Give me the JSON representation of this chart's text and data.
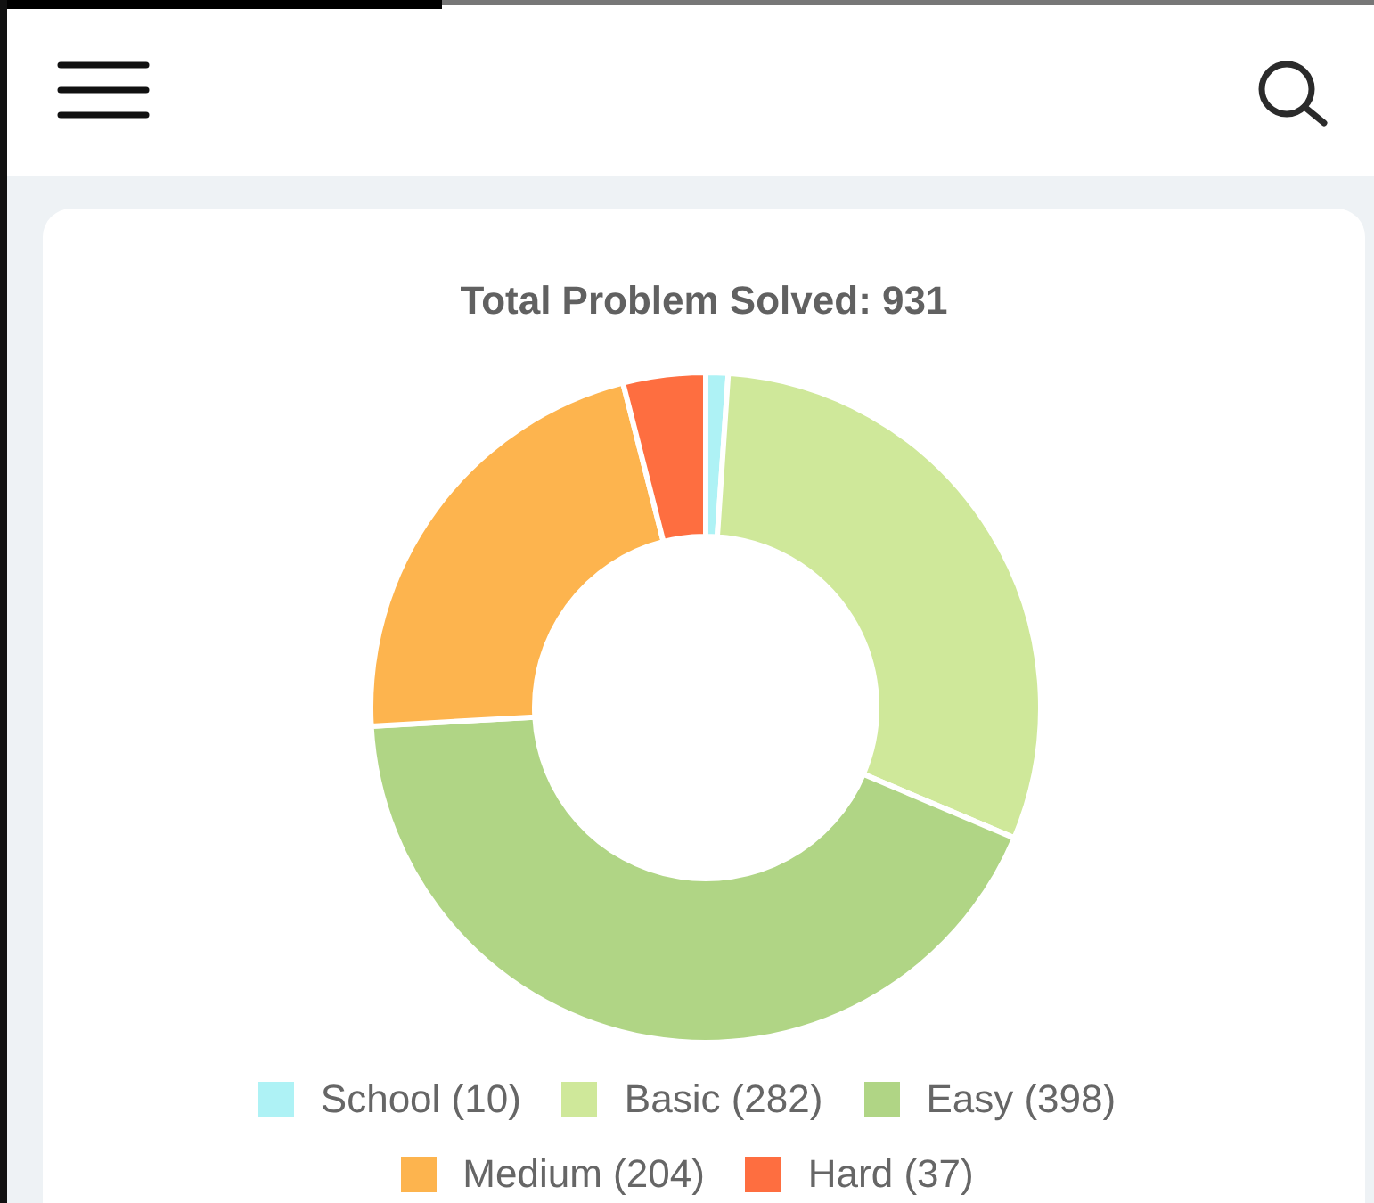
{
  "chart_data": {
    "type": "donut",
    "title": "Total Problem Solved: 931",
    "categories": [
      "School (10)",
      "Basic (282)",
      "Easy (398)",
      "Medium (204)",
      "Hard (37)"
    ],
    "values": [
      10,
      282,
      398,
      204,
      37
    ],
    "colors": [
      "#aef2f5",
      "#cfe89a",
      "#b0d585",
      "#fdb44e",
      "#fe6e40"
    ],
    "legend": "bottom"
  }
}
